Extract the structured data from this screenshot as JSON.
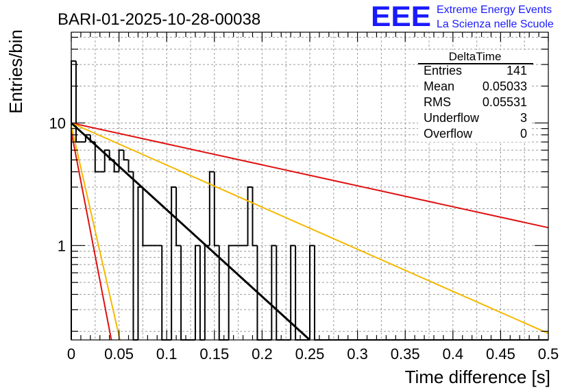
{
  "chart_data": {
    "type": "bar",
    "title": "BARI-01-2025-10-28-00038",
    "xlabel": "Time difference [s]",
    "ylabel": "Entries/bin",
    "xlim": [
      0,
      0.5
    ],
    "ylim": [
      0.17,
      55
    ],
    "y_scale": "log",
    "grid": true,
    "x_ticks": [
      "0",
      "0.05",
      "0.1",
      "0.15",
      "0.2",
      "0.25",
      "0.3",
      "0.35",
      "0.4",
      "0.45",
      "0.5"
    ],
    "y_ticks": [
      "1",
      "10"
    ],
    "logo": {
      "mark": "EEE",
      "line1": "Extreme Energy Events",
      "line2": "La Scienza nelle Scuole",
      "color": "#1a1aff"
    },
    "stats_box": {
      "title": "DeltaTime",
      "rows": [
        {
          "label": "Entries",
          "value": "141"
        },
        {
          "label": "Mean",
          "value": "0.05033"
        },
        {
          "label": "RMS",
          "value": "0.05531"
        },
        {
          "label": "Underflow",
          "value": "3"
        },
        {
          "label": "Overflow",
          "value": "0"
        }
      ]
    },
    "histogram": {
      "bin_width": 0.005,
      "counts": [
        32,
        7,
        7,
        8,
        7,
        4,
        4,
        6,
        5,
        4,
        6,
        5,
        4,
        0,
        3,
        1,
        1,
        1,
        1,
        0,
        0,
        3,
        1,
        0,
        0,
        0,
        1,
        0,
        1,
        4,
        1,
        0,
        0,
        1,
        1,
        1,
        1,
        3,
        1,
        0,
        0,
        0,
        1,
        0,
        0,
        0,
        1,
        0,
        0,
        0,
        1,
        0,
        0,
        0,
        0,
        0,
        0,
        0,
        0,
        0,
        0,
        0,
        0,
        0,
        0,
        0,
        0,
        0,
        0,
        0,
        0,
        0,
        0,
        0,
        0,
        0,
        0,
        0,
        0,
        0,
        0,
        0,
        0,
        0,
        0,
        0,
        0,
        0,
        0,
        0,
        0,
        0,
        0,
        0,
        0,
        0,
        0,
        0,
        0,
        0
      ],
      "color": "#000000"
    },
    "fit_lines": [
      {
        "points": [
          [
            0,
            10
          ],
          [
            0.5,
            1.4
          ]
        ],
        "color": "#e01010"
      },
      {
        "points": [
          [
            0,
            10
          ],
          [
            0.5,
            0.192
          ]
        ],
        "color": "#f5b800"
      },
      {
        "points": [
          [
            0,
            10
          ],
          [
            0.25,
            0.17
          ]
        ],
        "color": "#000000"
      },
      {
        "points": [
          [
            0,
            8.5
          ],
          [
            0.042,
            0.17
          ]
        ],
        "color": "#e01010"
      },
      {
        "points": [
          [
            0,
            9.5
          ],
          [
            0.051,
            0.17
          ]
        ],
        "color": "#f5b800"
      }
    ]
  }
}
